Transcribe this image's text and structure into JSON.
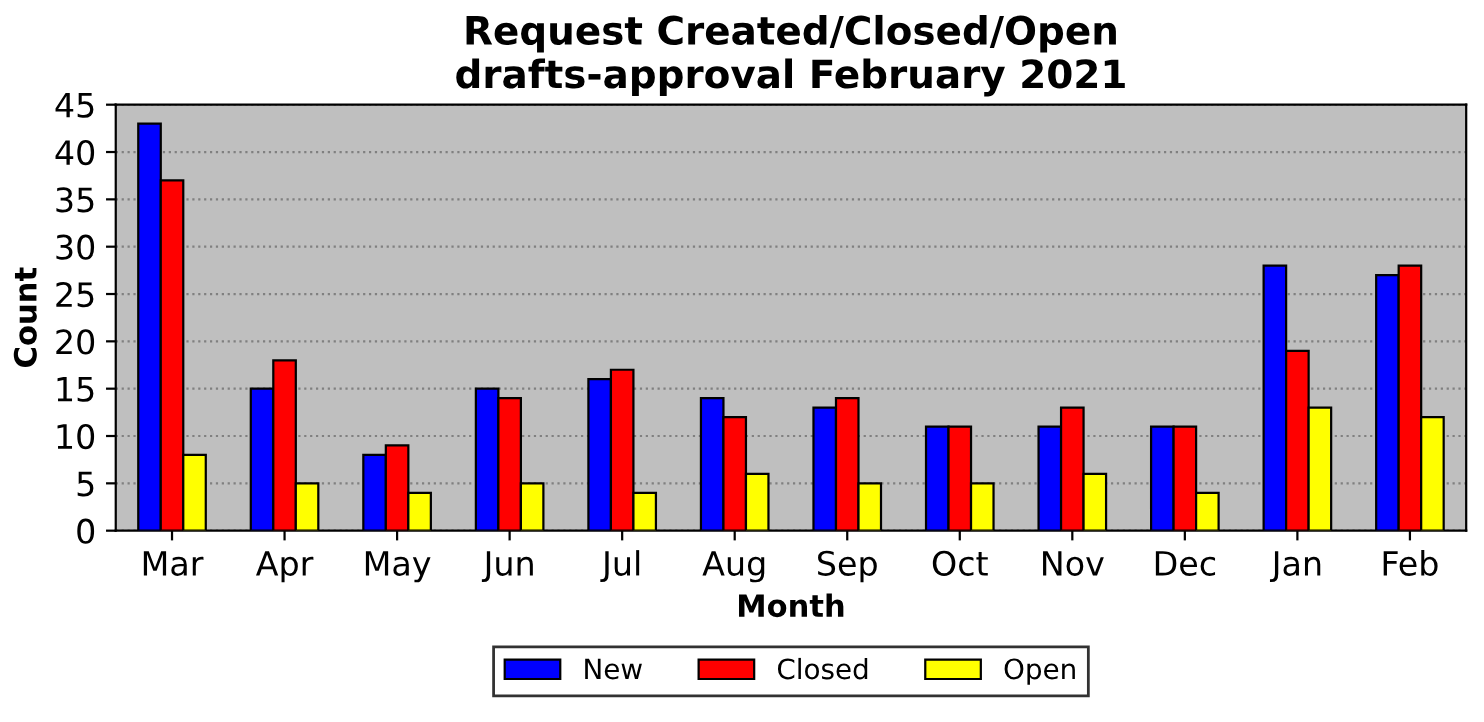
{
  "chart_data": {
    "type": "bar",
    "title": "Request Created/Closed/Open\ndrafts-approval February 2021",
    "xlabel": "Month",
    "ylabel": "Count",
    "categories": [
      "Mar",
      "Apr",
      "May",
      "Jun",
      "Jul",
      "Aug",
      "Sep",
      "Oct",
      "Nov",
      "Dec",
      "Jan",
      "Feb"
    ],
    "series": [
      {
        "name": "New",
        "color": "#0000ff",
        "values": [
          43,
          15,
          8,
          15,
          16,
          14,
          13,
          11,
          11,
          11,
          28,
          27
        ]
      },
      {
        "name": "Closed",
        "color": "#ff0000",
        "values": [
          37,
          18,
          9,
          14,
          17,
          12,
          14,
          11,
          13,
          11,
          19,
          28
        ]
      },
      {
        "name": "Open",
        "color": "#ffff00",
        "values": [
          8,
          5,
          4,
          5,
          4,
          6,
          5,
          5,
          6,
          4,
          13,
          12
        ]
      }
    ],
    "ylim": [
      0,
      45
    ],
    "yticks": [
      0,
      5,
      10,
      15,
      20,
      25,
      30,
      35,
      40,
      45
    ],
    "grid": "y",
    "legend": "bottom"
  }
}
